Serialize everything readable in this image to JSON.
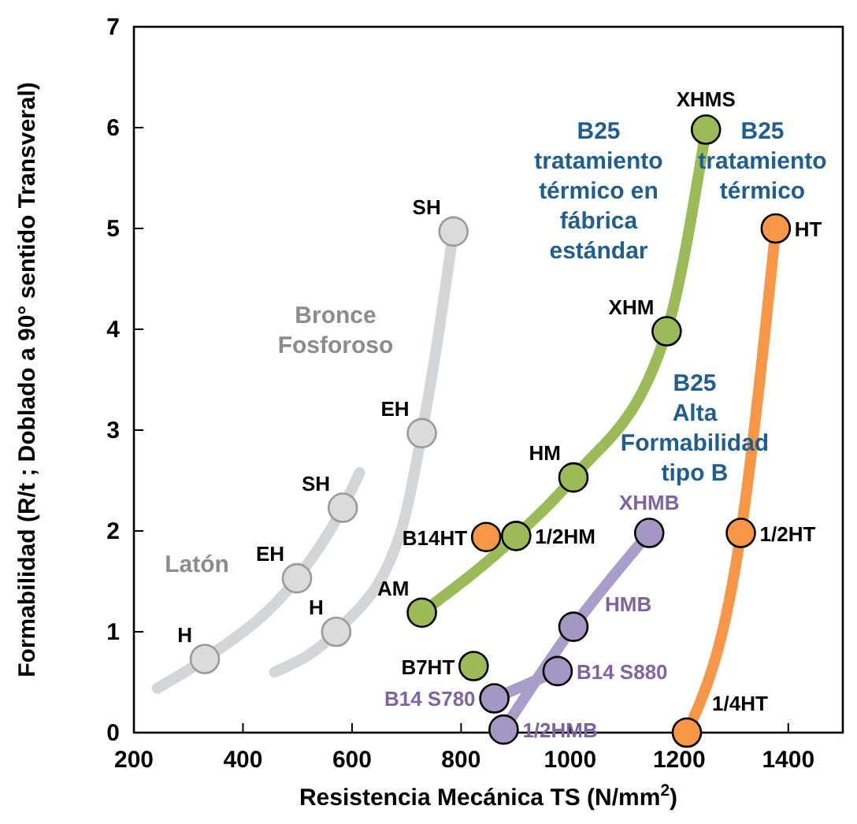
{
  "chart_data": {
    "type": "scatter",
    "xlabel": "Resistencia Mecánica TS (N/mm$^{2}$)",
    "ylabel": "Formabilidad (R/t ; Doblado a 90° sentido Transveral)",
    "xlim": [
      200,
      1500
    ],
    "ylim": [
      0,
      7
    ],
    "xticks": [
      200,
      400,
      600,
      800,
      1000,
      1200,
      1400
    ],
    "yticks": [
      0,
      1,
      2,
      3,
      4,
      5,
      6,
      7
    ],
    "marker": "circle",
    "series": [
      {
        "type": "line",
        "color": "#d3d6d9",
        "marker": "none",
        "x": [
          243,
          330,
          499,
          583,
          614
        ],
        "values": [
          0.44,
          0.73,
          1.53,
          2.23,
          2.58
        ]
      },
      {
        "type": "line",
        "color": "#d3d6d9",
        "marker": "none",
        "x": [
          458,
          571,
          690,
          728,
          760,
          786
        ],
        "values": [
          0.6,
          1.0,
          2.0,
          2.97,
          4.0,
          4.97
        ]
      },
      {
        "type": "line",
        "color": "#9bbb59",
        "marker": "none",
        "x": [
          728,
          901,
          1006,
          1177,
          1249
        ],
        "values": [
          1.19,
          1.95,
          2.53,
          3.98,
          5.98
        ]
      },
      {
        "type": "line",
        "color": "#f79646",
        "marker": "none",
        "x": [
          1214,
          1313,
          1377
        ],
        "values": [
          0,
          1.98,
          5.0
        ]
      },
      {
        "type": "line",
        "color": "#a99dc9",
        "marker": "none",
        "x": [
          878,
          1006,
          1145
        ],
        "values": [
          0.03,
          1.05,
          1.98
        ]
      },
      {
        "type": "line",
        "color": "#a99dc9",
        "marker": "none",
        "x": [
          861,
          977
        ],
        "values": [
          0.34,
          0.61
        ]
      },
      {
        "color": "#d9dbdd",
        "x": [
          330,
          499,
          583
        ],
        "values": [
          0.73,
          1.53,
          2.23
        ],
        "value_labels": [
          "H",
          "EH",
          "SH"
        ]
      },
      {
        "color": "#d9dbdd",
        "x": [
          571,
          728,
          786
        ],
        "values": [
          1.0,
          2.97,
          4.97
        ],
        "value_labels": [
          "H",
          "EH",
          "SH"
        ]
      },
      {
        "color": "#9bbb59",
        "x": [
          728,
          901,
          1006,
          1177,
          1249,
          823
        ],
        "values": [
          1.19,
          1.95,
          2.53,
          3.98,
          5.98,
          0.66
        ],
        "value_labels": [
          "AM",
          "1/2HM",
          "HM",
          "XHM",
          "XHMS",
          "B7HT"
        ]
      },
      {
        "color": "#f79646",
        "x": [
          1214,
          1313,
          1377,
          846
        ],
        "values": [
          0,
          1.98,
          5.0,
          1.94
        ],
        "value_labels": [
          "1/4HT",
          "1/2HT",
          "HT",
          "B14HT"
        ]
      },
      {
        "color": "#a497c5",
        "x": [
          878,
          861,
          977,
          1006,
          1145
        ],
        "values": [
          0.03,
          0.34,
          0.61,
          1.05,
          1.98
        ],
        "value_labels": [
          "1/2HMB",
          "B14 S780",
          "B14 S880",
          "HMB",
          "XHMB"
        ]
      }
    ],
    "annotations": [
      "Latón",
      "Bronce\nFosforoso",
      "B25\ntratamiento\ntérmico en\nfábrica\nestándar",
      "B25\ntratamiento\ntérmico",
      "B25\nAlta\nFormabilidad\ntipo B"
    ]
  }
}
